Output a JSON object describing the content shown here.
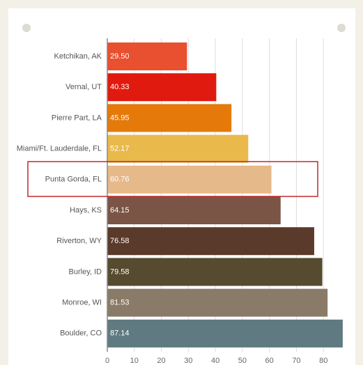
{
  "chart_data": {
    "type": "bar",
    "orientation": "horizontal",
    "categories": [
      "Ketchikan, AK",
      "Vernal, UT",
      "Pierre Part, LA",
      "Miami/Ft. Lauderdale, FL",
      "Punta Gorda, FL",
      "Hays, KS",
      "Riverton, WY",
      "Burley, ID",
      "Monroe, WI",
      "Boulder, CO"
    ],
    "values": [
      29.5,
      40.33,
      45.95,
      52.17,
      60.76,
      64.15,
      76.58,
      79.58,
      81.53,
      87.14
    ],
    "value_labels": [
      "29.50",
      "40.33",
      "45.95",
      "52.17",
      "60.76",
      "64.15",
      "76.58",
      "79.58",
      "81.53",
      "87.14"
    ],
    "colors": [
      "#e8502f",
      "#e01a0f",
      "#e57a0a",
      "#e9b94c",
      "#e6b98a",
      "#7a5546",
      "#5a3a2a",
      "#564a2f",
      "#8a7b69",
      "#5f7a80"
    ],
    "xlim": [
      0,
      90
    ],
    "xticks": [
      0,
      10,
      20,
      30,
      40,
      50,
      60,
      70,
      80
    ],
    "grid": true
  }
}
